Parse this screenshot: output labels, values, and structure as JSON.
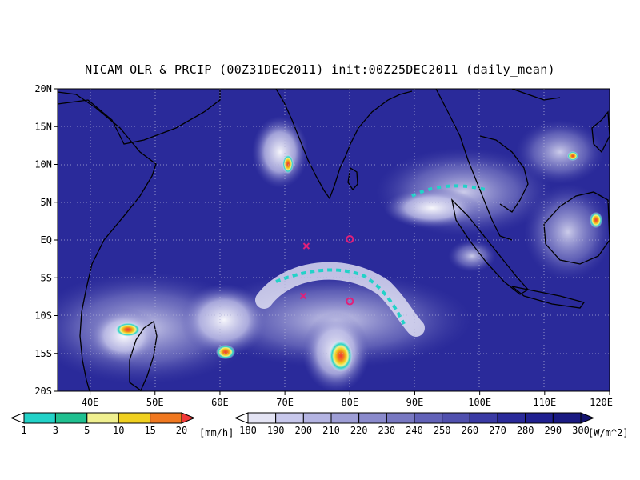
{
  "title": "NICAM OLR & PRCIP (00Z31DEC2011) init:00Z25DEC2011 (daily_mean)",
  "map": {
    "lon_range": [
      35,
      120
    ],
    "lat_range": [
      -20,
      20
    ],
    "lon_ticks": [
      {
        "value": 40,
        "label": "40E"
      },
      {
        "value": 50,
        "label": "50E"
      },
      {
        "value": 60,
        "label": "60E"
      },
      {
        "value": 70,
        "label": "70E"
      },
      {
        "value": 80,
        "label": "80E"
      },
      {
        "value": 90,
        "label": "90E"
      },
      {
        "value": 100,
        "label": "100E"
      },
      {
        "value": 110,
        "label": "110E"
      },
      {
        "value": 120,
        "label": "120E"
      }
    ],
    "lat_ticks": [
      {
        "value": 20,
        "label": "20N"
      },
      {
        "value": 15,
        "label": "15N"
      },
      {
        "value": 10,
        "label": "10N"
      },
      {
        "value": 5,
        "label": "5N"
      },
      {
        "value": 0,
        "label": "EQ"
      },
      {
        "value": -5,
        "label": "5S"
      },
      {
        "value": -10,
        "label": "10S"
      },
      {
        "value": -15,
        "label": "15S"
      },
      {
        "value": -20,
        "label": "20S"
      }
    ],
    "grid": true,
    "markers": [
      {
        "symbol": "x",
        "lon": 73.3,
        "lat": -0.8,
        "color": "#e0207a"
      },
      {
        "symbol": "x",
        "lon": 72.8,
        "lat": -7.4,
        "color": "#e0207a"
      },
      {
        "symbol": "o",
        "lon": 80.0,
        "lat": 0.1,
        "color": "#e0207a"
      },
      {
        "symbol": "o",
        "lon": 80.0,
        "lat": -8.1,
        "color": "#e0207a"
      }
    ]
  },
  "precip_colorbar": {
    "unit": "[mm/h]",
    "labels": [
      "1",
      "3",
      "5",
      "10",
      "15",
      "20"
    ],
    "colors": [
      "#ffffff",
      "#22d2c8",
      "#20c090",
      "#f0f090",
      "#f0d020",
      "#f07820",
      "#f03838"
    ]
  },
  "olr_colorbar": {
    "unit": "[W/m^2]",
    "labels": [
      "180",
      "190",
      "200",
      "210",
      "220",
      "230",
      "240",
      "250",
      "260",
      "270",
      "280",
      "290",
      "300"
    ],
    "colors": [
      "#ffffff",
      "#e4e4f4",
      "#c8c8ec",
      "#b4b4e2",
      "#9e9ed6",
      "#8a8acc",
      "#7878c2",
      "#6262b8",
      "#5050ae",
      "#3a3aa4",
      "#2a2a9a",
      "#202090",
      "#1a1a82",
      "#14146e"
    ]
  }
}
